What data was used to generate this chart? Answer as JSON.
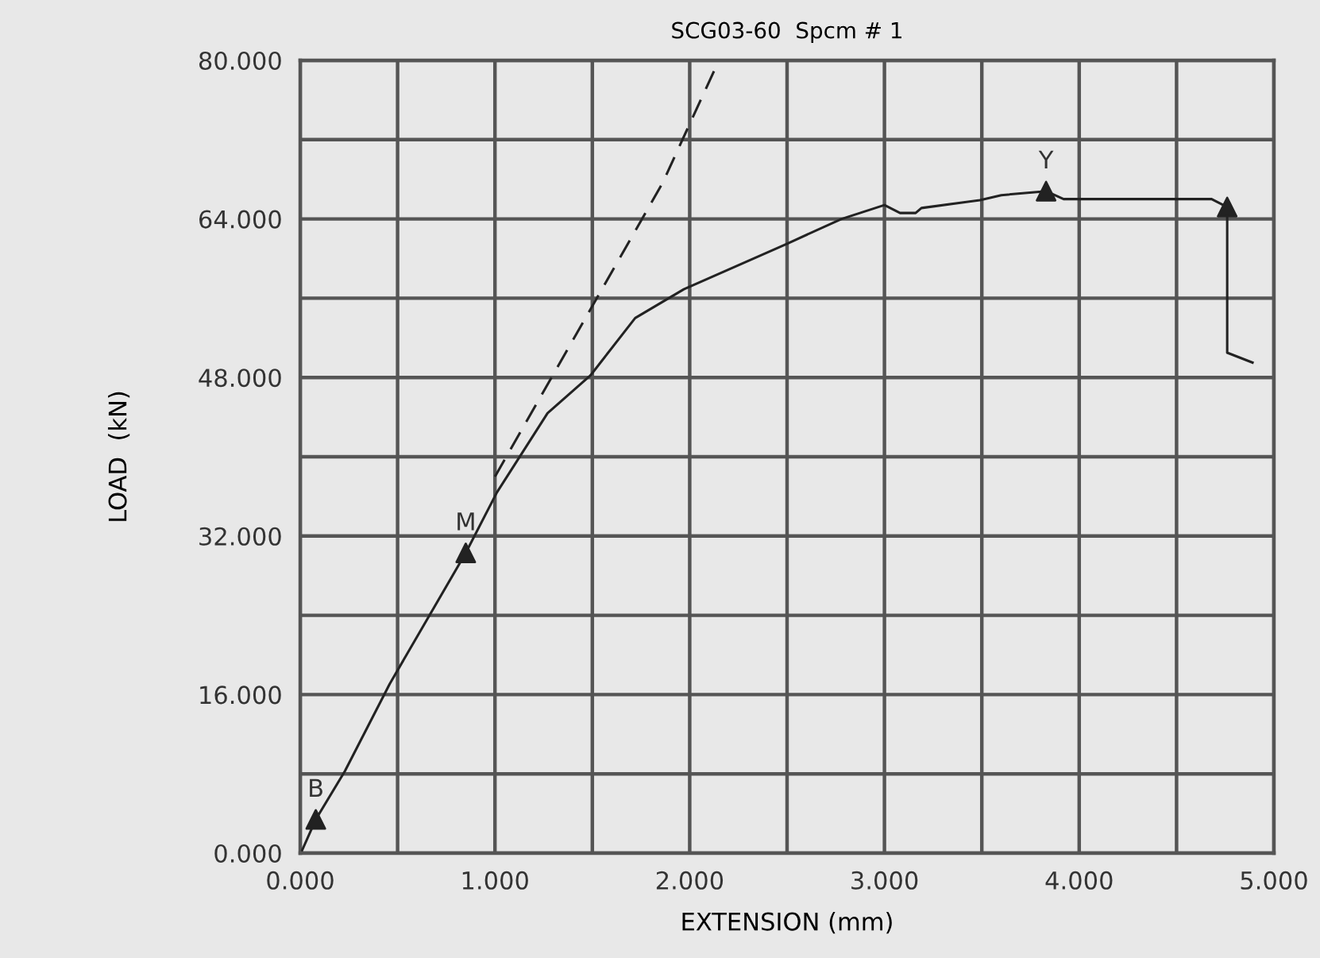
{
  "chart_data": {
    "type": "line",
    "title": "SCG03-60  Spcm # 1",
    "xlabel": "EXTENSION (mm)",
    "ylabel": "LOAD  (kN)",
    "xlim": [
      0,
      5
    ],
    "ylim": [
      0,
      80
    ],
    "xticks": [
      {
        "value": 0,
        "label": "0.000"
      },
      {
        "value": 0.5,
        "label": null
      },
      {
        "value": 1,
        "label": "1.000"
      },
      {
        "value": 1.5,
        "label": null
      },
      {
        "value": 2,
        "label": "2.000"
      },
      {
        "value": 2.5,
        "label": null
      },
      {
        "value": 3,
        "label": "3.000"
      },
      {
        "value": 3.5,
        "label": null
      },
      {
        "value": 4,
        "label": "4.000"
      },
      {
        "value": 4.5,
        "label": null
      },
      {
        "value": 5,
        "label": "5.000"
      }
    ],
    "yticks": [
      {
        "value": 0,
        "label": "0.000"
      },
      {
        "value": 8,
        "label": null
      },
      {
        "value": 16,
        "label": "16.000"
      },
      {
        "value": 24,
        "label": null
      },
      {
        "value": 32,
        "label": "32.000"
      },
      {
        "value": 40,
        "label": null
      },
      {
        "value": 48,
        "label": "48.000"
      },
      {
        "value": 56,
        "label": null
      },
      {
        "value": 64,
        "label": "64.000"
      },
      {
        "value": 72,
        "label": null
      },
      {
        "value": 80,
        "label": "80.000"
      }
    ],
    "grid": true,
    "legend": false,
    "series": [
      {
        "color": "#222222",
        "line_style": "solid",
        "marker": "none",
        "x": [
          0.01,
          0.08,
          0.23,
          0.46,
          0.85,
          1.01,
          1.27,
          1.49,
          1.72,
          1.97,
          2.5,
          2.78,
          3.0,
          3.08,
          3.16,
          3.19,
          3.49,
          3.6,
          3.83,
          3.92,
          4.68,
          4.76,
          4.76,
          4.89
        ],
        "values": [
          0.3,
          3.4,
          8.3,
          17.1,
          30.3,
          36.4,
          44.4,
          48.2,
          54.0,
          56.9,
          61.5,
          64.0,
          65.4,
          64.6,
          64.6,
          65.1,
          65.9,
          66.4,
          66.8,
          66.0,
          66.0,
          65.2,
          50.5,
          49.5
        ]
      },
      {
        "color": "#222222",
        "line_style": "dashed",
        "marker": "none",
        "x": [
          1.0,
          1.86,
          2.15
        ],
        "values": [
          38.0,
          67.6,
          80.0
        ]
      },
      {
        "type": "scatter",
        "color": "#222222",
        "marker": "triangle",
        "x": [
          0.08,
          0.85,
          3.83,
          4.76
        ],
        "values": [
          3.4,
          30.3,
          66.8,
          65.2
        ]
      }
    ],
    "annotations": [
      {
        "text": "B",
        "x": 0.08,
        "y": 3.4
      },
      {
        "text": "M",
        "x": 0.85,
        "y": 30.3
      },
      {
        "text": "Y",
        "x": 3.83,
        "y": 66.8
      }
    ]
  }
}
